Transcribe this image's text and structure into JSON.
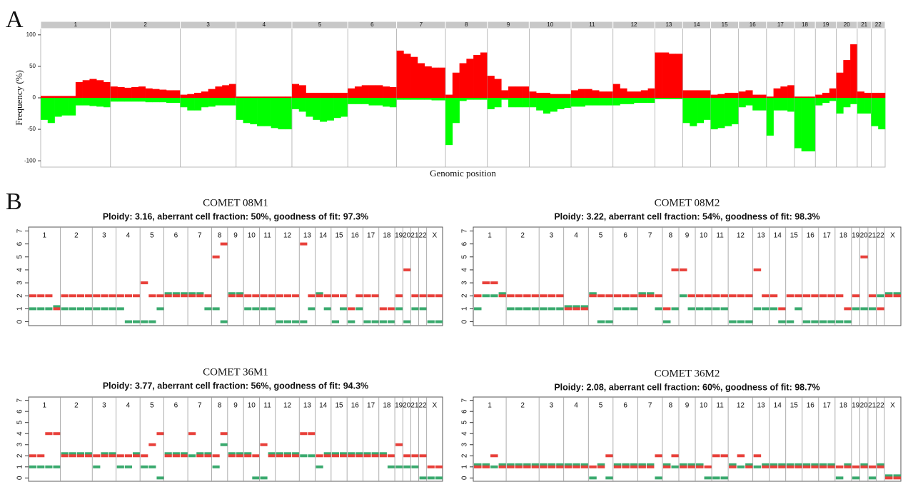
{
  "chart_data": [
    {
      "type": "frequency",
      "panel_label": "A",
      "ylabel": "Frequency (%)",
      "xlabel": "Genomic position",
      "categories": [
        "1",
        "2",
        "3",
        "4",
        "5",
        "6",
        "7",
        "8",
        "9",
        "10",
        "11",
        "12",
        "13",
        "14",
        "15",
        "16",
        "17",
        "18",
        "19",
        "20",
        "21",
        "22"
      ],
      "gain": [
        [
          3,
          3,
          3,
          3,
          3,
          25,
          28,
          30,
          28,
          25
        ],
        [
          18,
          17,
          16,
          17,
          18,
          15,
          14,
          13,
          12,
          12
        ],
        [
          5,
          6,
          8,
          10,
          14,
          18,
          20,
          22
        ],
        [
          2,
          2,
          2,
          2,
          2,
          2,
          2,
          2
        ],
        [
          22,
          20,
          8,
          8,
          8,
          8,
          8,
          8
        ],
        [
          15,
          18,
          20,
          20,
          20,
          18,
          17
        ],
        [
          75,
          70,
          65,
          55,
          50,
          48,
          48
        ],
        [
          5,
          40,
          55,
          62,
          68,
          72
        ],
        [
          35,
          30,
          12,
          18,
          18,
          18
        ],
        [
          10,
          8,
          8,
          6,
          6,
          6
        ],
        [
          12,
          14,
          14,
          12,
          10,
          10
        ],
        [
          22,
          15,
          10,
          10,
          12,
          15
        ],
        [
          72,
          72,
          70,
          70
        ],
        [
          12,
          12,
          12,
          12
        ],
        [
          5,
          6,
          8,
          8
        ],
        [
          10,
          12,
          5,
          5
        ],
        [
          2,
          15,
          18,
          20
        ],
        [
          2,
          2,
          2
        ],
        [
          5,
          8,
          15
        ],
        [
          40,
          60,
          85
        ],
        [
          10,
          8
        ],
        [
          8,
          8
        ]
      ],
      "loss": [
        [
          -35,
          -40,
          -30,
          -28,
          -28,
          -12,
          -12,
          -13,
          -14,
          -15
        ],
        [
          -6,
          -6,
          -6,
          -6,
          -6,
          -7,
          -7,
          -7,
          -8,
          -8
        ],
        [
          -15,
          -20,
          -20,
          -15,
          -14,
          -12,
          -12,
          -12
        ],
        [
          -35,
          -40,
          -42,
          -45,
          -45,
          -48,
          -50,
          -50
        ],
        [
          -18,
          -22,
          -30,
          -35,
          -38,
          -36,
          -32,
          -30
        ],
        [
          -10,
          -10,
          -10,
          -12,
          -12,
          -14,
          -15
        ],
        [
          -3,
          -3,
          -3,
          -3,
          -3,
          -4,
          -4
        ],
        [
          -75,
          -40,
          -5,
          -3,
          -3,
          -3
        ],
        [
          -18,
          -15,
          -3,
          -15,
          -15,
          -15
        ],
        [
          -15,
          -20,
          -25,
          -22,
          -18,
          -16
        ],
        [
          -14,
          -14,
          -12,
          -12,
          -12,
          -12
        ],
        [
          -12,
          -10,
          -10,
          -8,
          -8,
          -8
        ],
        [
          -2,
          -2,
          -2,
          -2
        ],
        [
          -40,
          -45,
          -40,
          -35
        ],
        [
          -50,
          -48,
          -45,
          -42
        ],
        [
          -15,
          -12,
          -20,
          -20
        ],
        [
          -60,
          -20,
          -20,
          -22
        ],
        [
          -80,
          -85,
          -85
        ],
        [
          -12,
          -8,
          -5
        ],
        [
          -25,
          -15,
          -10
        ],
        [
          -25,
          -25
        ],
        [
          -45,
          -50
        ]
      ],
      "gain_color": "#ff0000",
      "loss_color": "#00ff00",
      "ylim": [
        -110,
        110
      ],
      "yticks": [
        -100,
        -50,
        0,
        50,
        100
      ]
    },
    {
      "type": "copy-number",
      "panel_label": "B",
      "title": "COMET 08M1",
      "subtitle": "Ploidy: 3.16, aberrant cell fraction: 50%, goodness of fit: 97.3%",
      "categories": [
        "1",
        "2",
        "3",
        "4",
        "5",
        "6",
        "7",
        "8",
        "9",
        "10",
        "11",
        "12",
        "13",
        "14",
        "15",
        "16",
        "17",
        "18",
        "19",
        "20",
        "21",
        "22",
        "X"
      ],
      "major": [
        [
          2,
          2,
          2,
          1
        ],
        [
          2,
          2,
          2,
          2
        ],
        [
          2,
          2,
          2
        ],
        [
          2,
          2,
          2
        ],
        [
          3,
          2,
          2
        ],
        [
          2,
          2,
          2
        ],
        [
          2,
          2,
          2
        ],
        [
          5,
          6
        ],
        [
          2,
          2
        ],
        [
          2,
          2
        ],
        [
          2,
          2
        ],
        [
          2,
          2,
          2
        ],
        [
          6,
          2
        ],
        [
          2,
          2
        ],
        [
          2,
          2
        ],
        [
          1,
          2
        ],
        [
          2,
          2
        ],
        [
          1,
          1
        ],
        [
          2
        ],
        [
          4
        ],
        [
          2
        ],
        [
          2
        ],
        [
          2,
          2
        ]
      ],
      "minor": [
        [
          1,
          1,
          1,
          1
        ],
        [
          1,
          1,
          1,
          1
        ],
        [
          1,
          1,
          1
        ],
        [
          1,
          0,
          0
        ],
        [
          0,
          0,
          1
        ],
        [
          2,
          2,
          2
        ],
        [
          2,
          2,
          1
        ],
        [
          1,
          0
        ],
        [
          2,
          2
        ],
        [
          1,
          1
        ],
        [
          1,
          1
        ],
        [
          0,
          0,
          0
        ],
        [
          0,
          1
        ],
        [
          2,
          1
        ],
        [
          0,
          1
        ],
        [
          0,
          1
        ],
        [
          0,
          0
        ],
        [
          0,
          0
        ],
        [
          1
        ],
        [
          0
        ],
        [
          1
        ],
        [
          1
        ],
        [
          0,
          0
        ]
      ],
      "major_color": "#e8403a",
      "minor_color": "#3aaa6e",
      "ylim": [
        -0.3,
        7.3
      ],
      "yticks": [
        0,
        1,
        2,
        3,
        4,
        5,
        6,
        7
      ]
    },
    {
      "type": "copy-number",
      "title": "COMET 08M2",
      "subtitle": "Ploidy: 3.22, aberrant cell fraction: 54%, goodness of fit: 98.3%",
      "categories": [
        "1",
        "2",
        "3",
        "4",
        "5",
        "6",
        "7",
        "8",
        "9",
        "10",
        "11",
        "12",
        "13",
        "14",
        "15",
        "16",
        "17",
        "18",
        "19",
        "20",
        "21",
        "22",
        "X"
      ],
      "major": [
        [
          2,
          3,
          3,
          2
        ],
        [
          2,
          2,
          2,
          2
        ],
        [
          2,
          2,
          2
        ],
        [
          1,
          1,
          1
        ],
        [
          2,
          2,
          2
        ],
        [
          2,
          2,
          2
        ],
        [
          2,
          2,
          2
        ],
        [
          1,
          4
        ],
        [
          4,
          2
        ],
        [
          2,
          2
        ],
        [
          2,
          2
        ],
        [
          2,
          2,
          2
        ],
        [
          4,
          2
        ],
        [
          2,
          1
        ],
        [
          2,
          2
        ],
        [
          2,
          2
        ],
        [
          2,
          2
        ],
        [
          2,
          1
        ],
        [
          2
        ],
        [
          5
        ],
        [
          2
        ],
        [
          1
        ],
        [
          2,
          2
        ]
      ],
      "minor": [
        [
          1,
          2,
          2,
          2
        ],
        [
          1,
          1,
          1,
          1
        ],
        [
          1,
          1,
          1
        ],
        [
          1,
          1,
          1
        ],
        [
          2,
          0,
          0
        ],
        [
          1,
          1,
          1
        ],
        [
          2,
          2,
          1
        ],
        [
          0,
          1
        ],
        [
          2,
          1
        ],
        [
          1,
          1
        ],
        [
          1,
          1
        ],
        [
          0,
          0,
          0
        ],
        [
          1,
          1
        ],
        [
          1,
          0
        ],
        [
          0,
          1
        ],
        [
          0,
          0
        ],
        [
          0,
          0
        ],
        [
          0,
          0
        ],
        [
          1
        ],
        [
          1
        ],
        [
          1
        ],
        [
          2
        ],
        [
          2,
          2
        ]
      ],
      "major_color": "#e8403a",
      "minor_color": "#3aaa6e",
      "ylim": [
        -0.3,
        7.3
      ],
      "yticks": [
        0,
        1,
        2,
        3,
        4,
        5,
        6,
        7
      ]
    },
    {
      "type": "copy-number",
      "title": "COMET 36M1",
      "subtitle": "Ploidy: 3.77, aberrant cell fraction: 56%, goodness of fit: 94.3%",
      "categories": [
        "1",
        "2",
        "3",
        "4",
        "5",
        "6",
        "7",
        "8",
        "9",
        "10",
        "11",
        "12",
        "13",
        "14",
        "15",
        "16",
        "17",
        "18",
        "19",
        "20",
        "21",
        "22",
        "X"
      ],
      "major": [
        [
          2,
          2,
          4,
          4
        ],
        [
          2,
          2,
          2,
          2
        ],
        [
          2,
          2,
          2
        ],
        [
          2,
          2,
          2
        ],
        [
          2,
          3,
          4
        ],
        [
          2,
          2,
          2
        ],
        [
          4,
          2,
          2
        ],
        [
          2,
          4
        ],
        [
          2,
          2
        ],
        [
          2,
          2
        ],
        [
          3,
          2
        ],
        [
          2,
          2,
          2
        ],
        [
          4,
          4
        ],
        [
          2,
          2
        ],
        [
          2,
          2
        ],
        [
          2,
          2
        ],
        [
          2,
          2
        ],
        [
          2,
          2
        ],
        [
          3
        ],
        [
          2
        ],
        [
          2
        ],
        [
          2
        ],
        [
          1,
          1
        ]
      ],
      "minor": [
        [
          1,
          1,
          1,
          1
        ],
        [
          2,
          2,
          2,
          2
        ],
        [
          1,
          2,
          2
        ],
        [
          1,
          1,
          2
        ],
        [
          1,
          1,
          0
        ],
        [
          2,
          2,
          2
        ],
        [
          2,
          2,
          2
        ],
        [
          1,
          3
        ],
        [
          2,
          2
        ],
        [
          2,
          0
        ],
        [
          0,
          2
        ],
        [
          2,
          2,
          2
        ],
        [
          2,
          2
        ],
        [
          1,
          2
        ],
        [
          2,
          2
        ],
        [
          2,
          2
        ],
        [
          2,
          2
        ],
        [
          2,
          1
        ],
        [
          1
        ],
        [
          1
        ],
        [
          1
        ],
        [
          0
        ],
        [
          0,
          0
        ]
      ],
      "major_color": "#e8403a",
      "minor_color": "#3aaa6e",
      "ylim": [
        -0.3,
        7.3
      ],
      "yticks": [
        0,
        1,
        2,
        3,
        4,
        5,
        6,
        7
      ]
    },
    {
      "type": "copy-number",
      "title": "COMET 36M2",
      "subtitle": "Ploidy: 2.08, aberrant cell fraction: 60%, goodness of fit: 98.7%",
      "categories": [
        "1",
        "2",
        "3",
        "4",
        "5",
        "6",
        "7",
        "8",
        "9",
        "10",
        "11",
        "12",
        "13",
        "14",
        "15",
        "16",
        "17",
        "18",
        "19",
        "20",
        "21",
        "22",
        "X"
      ],
      "major": [
        [
          1,
          1,
          2,
          1
        ],
        [
          1,
          1,
          1,
          1
        ],
        [
          1,
          1,
          1
        ],
        [
          1,
          1,
          1
        ],
        [
          1,
          1,
          2
        ],
        [
          1,
          1,
          1
        ],
        [
          1,
          1,
          2
        ],
        [
          1,
          2
        ],
        [
          1,
          1
        ],
        [
          1,
          1
        ],
        [
          2,
          2
        ],
        [
          1,
          2,
          1
        ],
        [
          2,
          1
        ],
        [
          1,
          1
        ],
        [
          1,
          1
        ],
        [
          1,
          1
        ],
        [
          1,
          1
        ],
        [
          1,
          1
        ],
        [
          1
        ],
        [
          1
        ],
        [
          1
        ],
        [
          1
        ],
        [
          0,
          0
        ]
      ],
      "minor": [
        [
          1,
          1,
          1,
          1
        ],
        [
          1,
          1,
          1,
          1
        ],
        [
          1,
          1,
          1
        ],
        [
          1,
          1,
          1
        ],
        [
          0,
          1,
          0
        ],
        [
          1,
          1,
          1
        ],
        [
          1,
          1,
          0
        ],
        [
          1,
          1
        ],
        [
          1,
          1
        ],
        [
          1,
          0
        ],
        [
          0,
          0
        ],
        [
          1,
          1,
          1
        ],
        [
          1,
          1
        ],
        [
          1,
          1
        ],
        [
          1,
          1
        ],
        [
          1,
          1
        ],
        [
          1,
          1
        ],
        [
          0,
          1
        ],
        [
          0
        ],
        [
          1
        ],
        [
          0
        ],
        [
          1
        ],
        [
          0,
          0
        ]
      ],
      "major_color": "#e8403a",
      "minor_color": "#3aaa6e",
      "ylim": [
        -0.3,
        7.3
      ],
      "yticks": [
        0,
        1,
        2,
        3,
        4,
        5,
        6,
        7
      ]
    }
  ]
}
